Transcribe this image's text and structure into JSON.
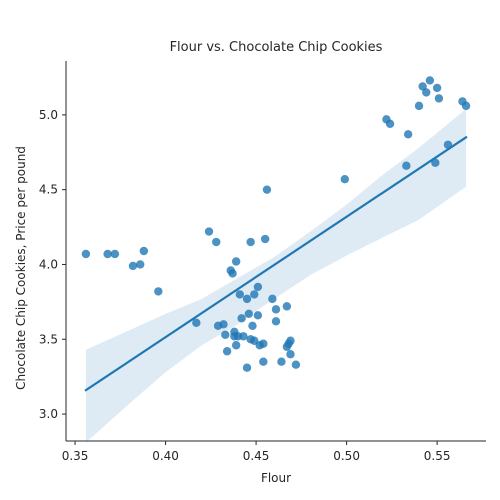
{
  "chart_data": {
    "type": "scatter",
    "title": "Flour vs. Chocolate Chip Cookies",
    "xlabel": "Flour",
    "ylabel": "Chocolate Chip Cookies, Price per pound",
    "xlim": [
      0.345,
      0.577
    ],
    "ylim": [
      2.82,
      5.36
    ],
    "xticks": [
      0.35,
      0.4,
      0.45,
      0.5,
      0.55
    ],
    "xtick_labels": [
      "0.35",
      "0.40",
      "0.45",
      "0.50",
      "0.55"
    ],
    "yticks": [
      3.0,
      3.5,
      4.0,
      4.5,
      5.0
    ],
    "ytick_labels": [
      "3.0",
      "3.5",
      "4.0",
      "4.5",
      "5.0"
    ],
    "grid": false,
    "legend": "none",
    "point_color": "#1f77b4",
    "line_color": "#1f77b4",
    "band_color": "#1f77b4",
    "points": [
      {
        "x": 0.356,
        "y": 4.07
      },
      {
        "x": 0.368,
        "y": 4.07
      },
      {
        "x": 0.372,
        "y": 4.07
      },
      {
        "x": 0.382,
        "y": 3.99
      },
      {
        "x": 0.386,
        "y": 4.0
      },
      {
        "x": 0.388,
        "y": 4.09
      },
      {
        "x": 0.396,
        "y": 3.82
      },
      {
        "x": 0.417,
        "y": 3.61
      },
      {
        "x": 0.424,
        "y": 4.22
      },
      {
        "x": 0.428,
        "y": 4.15
      },
      {
        "x": 0.429,
        "y": 3.59
      },
      {
        "x": 0.432,
        "y": 3.6
      },
      {
        "x": 0.433,
        "y": 3.53
      },
      {
        "x": 0.434,
        "y": 3.42
      },
      {
        "x": 0.436,
        "y": 3.96
      },
      {
        "x": 0.437,
        "y": 3.94
      },
      {
        "x": 0.438,
        "y": 3.52
      },
      {
        "x": 0.438,
        "y": 3.55
      },
      {
        "x": 0.439,
        "y": 4.02
      },
      {
        "x": 0.439,
        "y": 3.46
      },
      {
        "x": 0.44,
        "y": 3.52
      },
      {
        "x": 0.441,
        "y": 3.8
      },
      {
        "x": 0.442,
        "y": 3.64
      },
      {
        "x": 0.443,
        "y": 3.52
      },
      {
        "x": 0.445,
        "y": 3.77
      },
      {
        "x": 0.445,
        "y": 3.31
      },
      {
        "x": 0.446,
        "y": 3.67
      },
      {
        "x": 0.447,
        "y": 4.15
      },
      {
        "x": 0.447,
        "y": 3.5
      },
      {
        "x": 0.448,
        "y": 3.59
      },
      {
        "x": 0.449,
        "y": 3.8
      },
      {
        "x": 0.449,
        "y": 3.49
      },
      {
        "x": 0.451,
        "y": 3.66
      },
      {
        "x": 0.451,
        "y": 3.85
      },
      {
        "x": 0.452,
        "y": 3.46
      },
      {
        "x": 0.454,
        "y": 3.47
      },
      {
        "x": 0.454,
        "y": 3.35
      },
      {
        "x": 0.455,
        "y": 4.17
      },
      {
        "x": 0.456,
        "y": 4.5
      },
      {
        "x": 0.459,
        "y": 3.77
      },
      {
        "x": 0.461,
        "y": 3.7
      },
      {
        "x": 0.461,
        "y": 3.62
      },
      {
        "x": 0.464,
        "y": 3.35
      },
      {
        "x": 0.467,
        "y": 3.72
      },
      {
        "x": 0.467,
        "y": 3.45
      },
      {
        "x": 0.468,
        "y": 3.47
      },
      {
        "x": 0.469,
        "y": 3.4
      },
      {
        "x": 0.469,
        "y": 3.49
      },
      {
        "x": 0.472,
        "y": 3.33
      },
      {
        "x": 0.499,
        "y": 4.57
      },
      {
        "x": 0.522,
        "y": 4.97
      },
      {
        "x": 0.524,
        "y": 4.94
      },
      {
        "x": 0.533,
        "y": 4.66
      },
      {
        "x": 0.534,
        "y": 4.87
      },
      {
        "x": 0.54,
        "y": 5.06
      },
      {
        "x": 0.542,
        "y": 5.19
      },
      {
        "x": 0.544,
        "y": 5.15
      },
      {
        "x": 0.546,
        "y": 5.23
      },
      {
        "x": 0.549,
        "y": 4.68
      },
      {
        "x": 0.55,
        "y": 5.18
      },
      {
        "x": 0.551,
        "y": 5.11
      },
      {
        "x": 0.556,
        "y": 4.8
      },
      {
        "x": 0.564,
        "y": 5.09
      },
      {
        "x": 0.566,
        "y": 5.06
      }
    ],
    "regression": {
      "x": [
        0.356,
        0.566
      ],
      "y": [
        3.16,
        4.85
      ]
    },
    "confidence_band": {
      "x": [
        0.356,
        0.38,
        0.4,
        0.42,
        0.44,
        0.45,
        0.46,
        0.48,
        0.5,
        0.52,
        0.54,
        0.566
      ],
      "upper": [
        3.43,
        3.56,
        3.67,
        3.77,
        3.91,
        3.98,
        4.05,
        4.22,
        4.4,
        4.6,
        4.78,
        5.04
      ],
      "lower": [
        2.81,
        3.07,
        3.28,
        3.46,
        3.6,
        3.69,
        3.77,
        3.93,
        4.06,
        4.18,
        4.3,
        4.52
      ]
    }
  }
}
